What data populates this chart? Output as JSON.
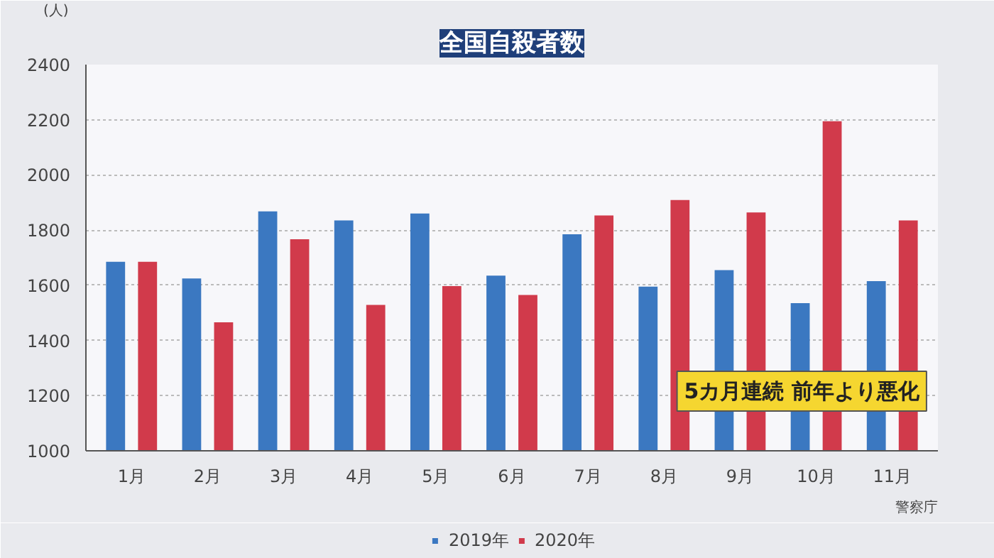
{
  "chart_data": {
    "type": "bar",
    "title": "全国自殺者数",
    "ylabel": "(人)",
    "categories": [
      "1月",
      "2月",
      "3月",
      "4月",
      "5月",
      "6月",
      "7月",
      "8月",
      "9月",
      "10月",
      "11月"
    ],
    "series": [
      {
        "name": "2019年",
        "color": "#3b78c1",
        "values": [
          1685,
          1625,
          1868,
          1835,
          1860,
          1635,
          1785,
          1595,
          1655,
          1535,
          1615
        ]
      },
      {
        "name": "2020年",
        "color": "#d13a4b",
        "values": [
          1685,
          1466,
          1767,
          1529,
          1597,
          1565,
          1853,
          1909,
          1864,
          2195,
          1835
        ]
      }
    ],
    "ylim": [
      1000,
      2400
    ],
    "yticks": [
      1000,
      1200,
      1400,
      1600,
      1800,
      2000,
      2200,
      2400
    ],
    "grid": "y",
    "legend": "bottom",
    "annotations": [
      "5カ月連続 前年より悪化",
      "警察庁"
    ]
  }
}
